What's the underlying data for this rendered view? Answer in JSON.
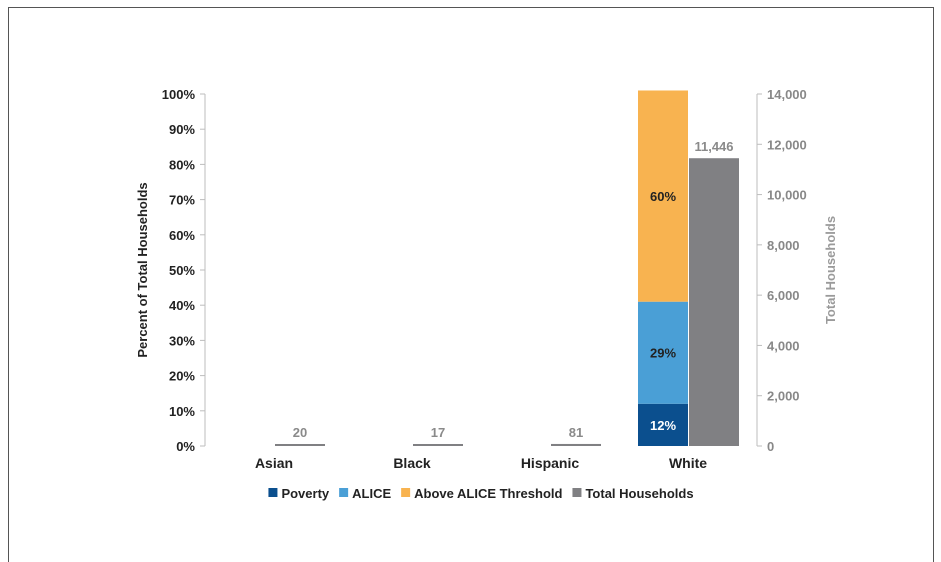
{
  "chart_data": {
    "type": "bar",
    "categories": [
      "Asian",
      "Black",
      "Hispanic",
      "White"
    ],
    "series": [
      {
        "name": "Poverty",
        "axis": "left",
        "stack": "pct",
        "values": [
          0,
          0,
          0,
          12
        ],
        "labels": [
          "",
          "",
          "",
          "12%"
        ],
        "color": "#0b4f8e"
      },
      {
        "name": "ALICE",
        "axis": "left",
        "stack": "pct",
        "values": [
          0,
          0,
          0,
          29
        ],
        "labels": [
          "",
          "",
          "",
          "29%"
        ],
        "color": "#4a9fd6"
      },
      {
        "name": "Above ALICE Threshold",
        "axis": "left",
        "stack": "pct",
        "values": [
          0,
          0,
          0,
          60
        ],
        "labels": [
          "",
          "",
          "",
          "60%"
        ],
        "color": "#f8b350"
      },
      {
        "name": "Total Households",
        "axis": "right",
        "values": [
          20,
          17,
          81,
          11446
        ],
        "labels": [
          "20",
          "17",
          "81",
          "11,446"
        ],
        "color": "#808083"
      }
    ],
    "ylabel": "Percent of Total Households",
    "y2label": "Total Households",
    "ylim": [
      0,
      100
    ],
    "y2lim": [
      0,
      14000
    ],
    "yticks": [
      "0%",
      "10%",
      "20%",
      "30%",
      "40%",
      "50%",
      "60%",
      "70%",
      "80%",
      "90%",
      "100%"
    ],
    "y2ticks": [
      "0",
      "2,000",
      "4,000",
      "6,000",
      "8,000",
      "10,000",
      "12,000",
      "14,000"
    ],
    "legend_position": "bottom",
    "grid": false
  }
}
